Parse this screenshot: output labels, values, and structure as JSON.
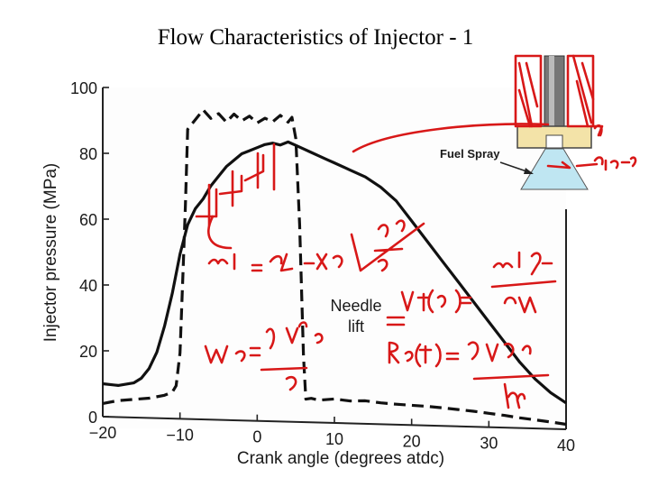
{
  "slide": {
    "title": "Flow Characteristics of Injector - 1"
  },
  "chart_data": {
    "type": "line",
    "title": "Flow Characteristics of Injector - 1",
    "xlabel": "Crank angle (degrees atdc)",
    "ylabel": "Injector pressure (MPa)",
    "xlim": [
      -20,
      40
    ],
    "ylim": [
      0,
      100
    ],
    "x_ticks": [
      -20,
      -10,
      0,
      10,
      20,
      30,
      40
    ],
    "x_tick_labels": [
      "−20",
      "−10",
      "0",
      "10",
      "20",
      "30",
      "40"
    ],
    "y_ticks": [
      0,
      20,
      40,
      60,
      80,
      100
    ],
    "y_tick_labels": [
      "0",
      "20",
      "40",
      "60",
      "80",
      "100"
    ],
    "grid": false,
    "series": [
      {
        "name": "Injector pressure",
        "style": "solid",
        "x": [
          -20,
          -18,
          -16,
          -15,
          -14,
          -13,
          -12,
          -11,
          -10,
          -9,
          -8,
          -7,
          -6,
          -5,
          -4,
          -3,
          -2,
          -1,
          0,
          1,
          2,
          3,
          4,
          5,
          6,
          7,
          8,
          9,
          10,
          12,
          14,
          16,
          18,
          20,
          22,
          24,
          26,
          28,
          30,
          32,
          34,
          36,
          38,
          40
        ],
        "y": [
          10,
          9.6,
          10.5,
          12,
          15,
          20,
          28,
          38,
          50,
          59,
          64,
          67,
          71,
          74,
          77,
          79,
          81,
          82,
          83,
          84,
          84.5,
          84,
          85,
          84,
          83,
          82,
          81,
          80,
          79,
          77,
          75,
          72,
          68,
          62,
          56,
          50,
          44,
          38,
          32,
          26,
          20,
          15,
          11,
          8
        ]
      },
      {
        "name": "Needle lift",
        "style": "dashed",
        "x": [
          -20,
          -18,
          -16,
          -14,
          -12,
          -11,
          -10.5,
          -10,
          -9.6,
          -9.3,
          -9,
          -8,
          -7,
          -6,
          -5,
          -4,
          -3,
          -2,
          -1,
          0,
          1,
          2,
          3,
          4,
          4.5,
          5,
          5.5,
          6,
          6.3,
          7,
          8,
          10,
          12,
          14,
          16,
          18,
          20,
          22,
          24,
          26,
          28,
          30,
          32,
          34,
          36,
          38,
          40
        ],
        "y": [
          4,
          5,
          5.5,
          6,
          7,
          8,
          10,
          20,
          45,
          65,
          88,
          91,
          94,
          91.5,
          93,
          90.5,
          93,
          91,
          92.5,
          90.5,
          92,
          91,
          93,
          91,
          92.5,
          86,
          60,
          20,
          7,
          7.3,
          6.8,
          7.3,
          6.8,
          7,
          6.5,
          6.2,
          6,
          5.8,
          5.5,
          5.1,
          4.7,
          4.2,
          3.7,
          3.1,
          2.6,
          2.1,
          1.5
        ]
      }
    ],
    "annotations": {
      "needle_label": [
        "Needle",
        "lift"
      ],
      "fuel_spray_label": "Fuel Spray"
    }
  }
}
